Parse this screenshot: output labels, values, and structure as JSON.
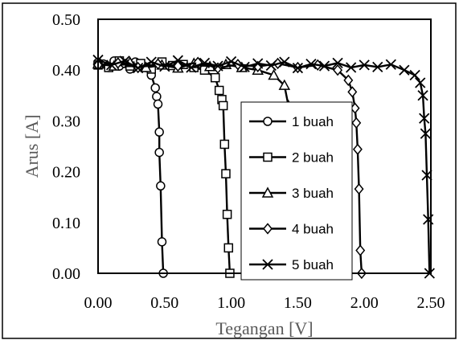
{
  "chart_data": {
    "type": "line",
    "xlabel": "Tegangan [V]",
    "ylabel": "Arus [A]",
    "xlim": [
      0,
      2.5
    ],
    "ylim": [
      0,
      0.5
    ],
    "xticks": [
      0,
      0.5,
      1.0,
      1.5,
      2.0,
      2.5
    ],
    "xtick_labels": [
      "0.00",
      "0.50",
      "1.00",
      "1.50",
      "2.00",
      "2.50"
    ],
    "yticks": [
      0,
      0.1,
      0.2,
      0.3,
      0.4,
      0.5
    ],
    "ytick_labels": [
      "0.00",
      "0.10",
      "0.20",
      "0.30",
      "0.40",
      "0.50"
    ],
    "grid": false,
    "legend_position": "center-right",
    "series": [
      {
        "name": "1 buah",
        "marker": "circle",
        "color": "#000000",
        "x": [
          0.0,
          0.04,
          0.08,
          0.12,
          0.16,
          0.2,
          0.24,
          0.28,
          0.32,
          0.36,
          0.4,
          0.43,
          0.44,
          0.45,
          0.46,
          0.46,
          0.47,
          0.48,
          0.49
        ],
        "y": [
          0.415,
          0.412,
          0.405,
          0.418,
          0.408,
          0.413,
          0.402,
          0.416,
          0.409,
          0.405,
          0.39,
          0.365,
          0.348,
          0.333,
          0.278,
          0.238,
          0.172,
          0.062,
          0.0
        ]
      },
      {
        "name": "2 buah",
        "marker": "square",
        "color": "#000000",
        "x": [
          0.0,
          0.08,
          0.16,
          0.24,
          0.32,
          0.4,
          0.48,
          0.56,
          0.64,
          0.72,
          0.8,
          0.88,
          0.91,
          0.93,
          0.94,
          0.95,
          0.96,
          0.97,
          0.98,
          0.99
        ],
        "y": [
          0.41,
          0.405,
          0.418,
          0.408,
          0.413,
          0.402,
          0.416,
          0.409,
          0.411,
          0.405,
          0.4,
          0.385,
          0.36,
          0.342,
          0.33,
          0.254,
          0.196,
          0.116,
          0.05,
          0.0
        ]
      },
      {
        "name": "3 buah",
        "marker": "triangle",
        "color": "#000000",
        "x": [
          0.0,
          0.12,
          0.24,
          0.36,
          0.48,
          0.6,
          0.72,
          0.84,
          0.96,
          1.08,
          1.2,
          1.32,
          1.4,
          1.43,
          1.45,
          1.46,
          1.47,
          1.48,
          1.49
        ],
        "y": [
          0.412,
          0.408,
          0.415,
          0.405,
          0.41,
          0.404,
          0.413,
          0.407,
          0.411,
          0.405,
          0.4,
          0.39,
          0.37,
          0.33,
          0.27,
          0.2,
          0.13,
          0.06,
          0.0
        ]
      },
      {
        "name": "4 buah",
        "marker": "diamond",
        "color": "#000000",
        "x": [
          0.0,
          0.15,
          0.3,
          0.45,
          0.6,
          0.75,
          0.9,
          1.05,
          1.2,
          1.35,
          1.5,
          1.65,
          1.8,
          1.88,
          1.91,
          1.93,
          1.94,
          1.95,
          1.96,
          1.97,
          1.98
        ],
        "y": [
          0.41,
          0.414,
          0.405,
          0.412,
          0.408,
          0.415,
          0.404,
          0.411,
          0.407,
          0.413,
          0.405,
          0.41,
          0.4,
          0.38,
          0.357,
          0.325,
          0.296,
          0.244,
          0.166,
          0.045,
          0.0
        ]
      },
      {
        "name": "5 buah",
        "marker": "x",
        "color": "#000000",
        "x": [
          0.0,
          0.1,
          0.2,
          0.3,
          0.4,
          0.5,
          0.6,
          0.7,
          0.8,
          0.9,
          1.0,
          1.1,
          1.2,
          1.3,
          1.4,
          1.5,
          1.6,
          1.7,
          1.8,
          1.9,
          2.0,
          2.1,
          2.2,
          2.3,
          2.38,
          2.42,
          2.44,
          2.45,
          2.46,
          2.47,
          2.48,
          2.49
        ],
        "y": [
          0.42,
          0.41,
          0.418,
          0.404,
          0.416,
          0.407,
          0.419,
          0.405,
          0.414,
          0.408,
          0.417,
          0.406,
          0.413,
          0.409,
          0.416,
          0.404,
          0.412,
          0.408,
          0.414,
          0.405,
          0.41,
          0.406,
          0.411,
          0.4,
          0.39,
          0.375,
          0.35,
          0.305,
          0.275,
          0.193,
          0.106,
          0.0
        ]
      }
    ]
  }
}
